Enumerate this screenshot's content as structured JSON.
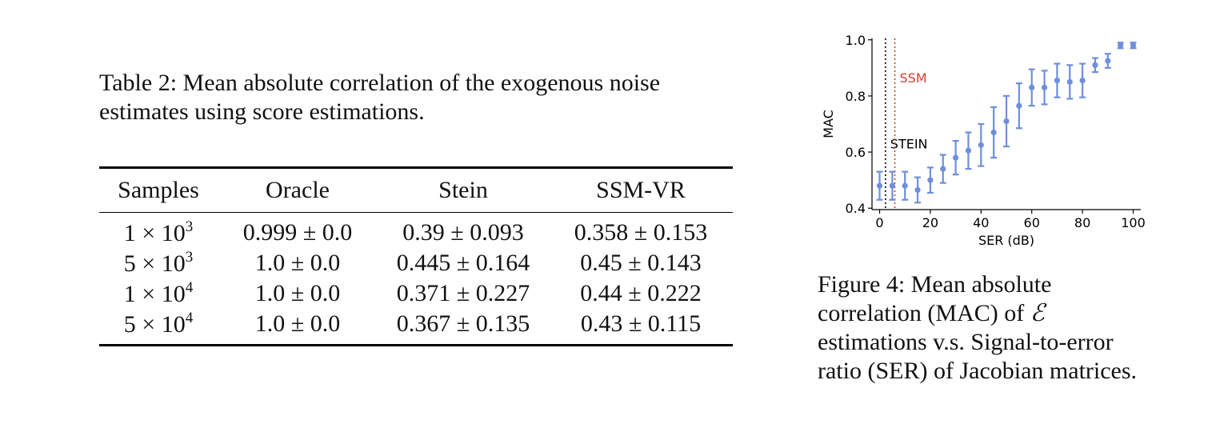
{
  "table_caption": "Table 2: Mean absolute correlation of the exogenous noise estimates using score estimations.",
  "table": {
    "headers": [
      "Samples",
      "Oracle",
      "Stein",
      "SSM-VR"
    ],
    "rows": [
      {
        "samples_mantissa": "1 × 10",
        "samples_exp": "3",
        "oracle": "0.999 ± 0.0",
        "stein": "0.39 ± 0.093",
        "ssm_vr": "0.358 ± 0.153"
      },
      {
        "samples_mantissa": "5 × 10",
        "samples_exp": "3",
        "oracle": "1.0 ± 0.0",
        "stein": "0.445 ± 0.164",
        "ssm_vr": "0.45 ± 0.143"
      },
      {
        "samples_mantissa": "1 × 10",
        "samples_exp": "4",
        "oracle": "1.0 ± 0.0",
        "stein": "0.371 ± 0.227",
        "ssm_vr": "0.44 ± 0.222"
      },
      {
        "samples_mantissa": "5 × 10",
        "samples_exp": "4",
        "oracle": "1.0 ± 0.0",
        "stein": "0.367 ± 0.135",
        "ssm_vr": "0.43 ± 0.115"
      }
    ]
  },
  "figure_caption": {
    "prefix": "Figure 4: Mean absolute correlation (MAC) of",
    "symbol": "ℰ",
    "suffix": "estimations v.s. Signal-to-error ratio (SER) of Jacobian matrices."
  },
  "chart_data": {
    "type": "scatter",
    "xlabel": "SER (dB)",
    "ylabel": "MAC",
    "xlim": [
      -3,
      103
    ],
    "ylim": [
      0.395,
      1.005
    ],
    "x_ticks": [
      0,
      20,
      40,
      60,
      80,
      100
    ],
    "y_ticks": [
      0.4,
      0.6,
      0.8,
      1.0
    ],
    "x_tick_labels": [
      "0",
      "20",
      "40",
      "60",
      "80",
      "100"
    ],
    "y_tick_labels": [
      "0.4",
      "0.6",
      "0.8",
      "1.0"
    ],
    "grid": false,
    "series": [
      {
        "color": "#6f8fdc",
        "points": [
          {
            "x": 0,
            "y": 0.48,
            "err": 0.05
          },
          {
            "x": 5,
            "y": 0.48,
            "err": 0.05
          },
          {
            "x": 10,
            "y": 0.48,
            "err": 0.05
          },
          {
            "x": 15,
            "y": 0.465,
            "err": 0.045
          },
          {
            "x": 20,
            "y": 0.5,
            "err": 0.045
          },
          {
            "x": 25,
            "y": 0.54,
            "err": 0.05
          },
          {
            "x": 30,
            "y": 0.58,
            "err": 0.06
          },
          {
            "x": 35,
            "y": 0.605,
            "err": 0.065
          },
          {
            "x": 40,
            "y": 0.625,
            "err": 0.075
          },
          {
            "x": 45,
            "y": 0.67,
            "err": 0.09
          },
          {
            "x": 50,
            "y": 0.71,
            "err": 0.09
          },
          {
            "x": 55,
            "y": 0.765,
            "err": 0.08
          },
          {
            "x": 60,
            "y": 0.83,
            "err": 0.065
          },
          {
            "x": 65,
            "y": 0.83,
            "err": 0.06
          },
          {
            "x": 70,
            "y": 0.855,
            "err": 0.06
          },
          {
            "x": 75,
            "y": 0.85,
            "err": 0.06
          },
          {
            "x": 80,
            "y": 0.855,
            "err": 0.06
          },
          {
            "x": 85,
            "y": 0.91,
            "err": 0.025
          },
          {
            "x": 90,
            "y": 0.925,
            "err": 0.025
          },
          {
            "x": 95,
            "y": 0.98,
            "err": 0.01
          },
          {
            "x": 100,
            "y": 0.98,
            "err": 0.01
          }
        ]
      }
    ],
    "vlines": [
      {
        "x": 2.3,
        "color": "#000000",
        "label": "STEIN",
        "label_y": 0.63
      },
      {
        "x": 6,
        "color": "#d43f2f",
        "label": "SSM",
        "label_y": 0.865
      }
    ]
  }
}
